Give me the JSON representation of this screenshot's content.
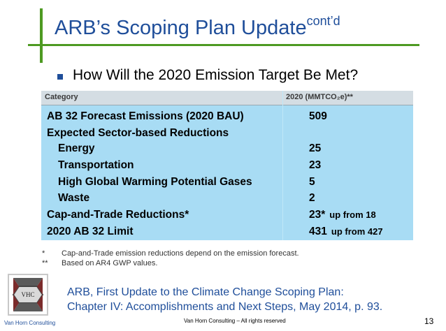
{
  "slide": {
    "title": "ARB’s Scoping Plan Update",
    "title_sup": "cont’d",
    "bullet": "How Will the 2020 Emission Target Be Met?"
  },
  "table": {
    "header": {
      "category": "Category",
      "value": "2020 (MMTCO₂e)**"
    },
    "rows": [
      {
        "label": "AB 32 Forecast Emissions (2020 BAU)",
        "value": "509",
        "note": "",
        "indent": false
      },
      {
        "label": "Expected Sector-based Reductions",
        "value": "",
        "note": "",
        "indent": false
      },
      {
        "label": "Energy",
        "value": "25",
        "note": "",
        "indent": true
      },
      {
        "label": "Transportation",
        "value": "23",
        "note": "",
        "indent": true
      },
      {
        "label": "High Global Warming Potential Gases",
        "value": "5",
        "note": "",
        "indent": true
      },
      {
        "label": "Waste",
        "value": "2",
        "note": "",
        "indent": true
      },
      {
        "label": "Cap-and-Trade Reductions*",
        "value": "23*",
        "note": "up from 18",
        "indent": false
      },
      {
        "label": "2020 AB 32 Limit",
        "value": "431",
        "note": "up from 427",
        "indent": false
      }
    ]
  },
  "notes": [
    {
      "mark": "*",
      "text": "Cap-and-Trade emission reductions depend on the emission forecast."
    },
    {
      "mark": "**",
      "text": "Based on AR4 GWP values."
    }
  ],
  "citation": {
    "line1": "ARB, First Update to the Climate Change Scoping Plan:",
    "line2": "Chapter IV: Accomplishments and Next Steps, May 2014, p. 93."
  },
  "footer": {
    "logo_text": "VHC",
    "company": "Van Horn Consulting",
    "rights": "Van Horn Consulting – All rights reserved",
    "page_number": "13"
  },
  "colors": {
    "accent_green": "#4e9a22",
    "title_blue": "#1f4e9a",
    "table_blue": "#a8dcf4"
  }
}
